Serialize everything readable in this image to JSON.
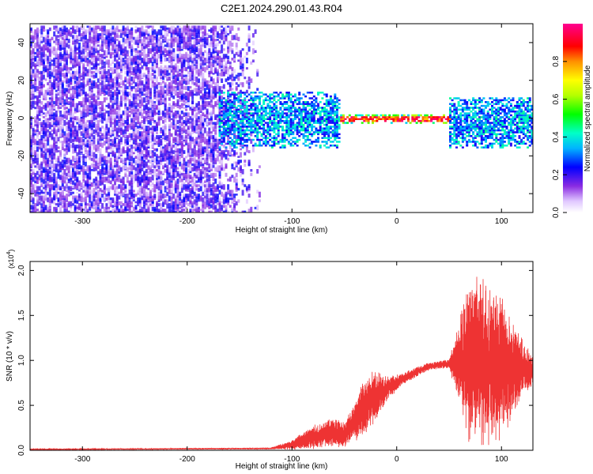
{
  "title": "C2E1.2024.290.01.43.R04",
  "chart_data": [
    {
      "type": "heatmap",
      "title": "C2E1.2024.290.01.43.R04",
      "xlabel": "Height of straight line (km)",
      "ylabel": "Frequency (Hz)",
      "xlim": [
        -350,
        130
      ],
      "ylim": [
        -50,
        50
      ],
      "xticks": [
        -300,
        -200,
        -100,
        0,
        100
      ],
      "xtick_labels": [
        "-300",
        "-200",
        "-100",
        "0",
        "100"
      ],
      "yticks": [
        -40,
        -20,
        0,
        20,
        40
      ],
      "ytick_labels": [
        "-40",
        "-20",
        "0",
        "20",
        "40"
      ],
      "colorbar": {
        "label": "Normalized spectral amplitude",
        "range": [
          0,
          1
        ],
        "ticks": [
          0.0,
          0.2,
          0.4,
          0.6,
          0.8
        ],
        "tick_labels": [
          "0.0",
          "0.2",
          "0.4",
          "0.6",
          "0.8"
        ],
        "colormap": "rainbow (white-violet-blue-cyan-green-yellow-red-magenta)"
      },
      "regions": [
        {
          "x": [
            -350,
            -130
          ],
          "freq_band": [
            -50,
            50
          ],
          "amplitude": [
            0.05,
            0.25
          ],
          "description_level": "noise"
        },
        {
          "x": [
            -170,
            -55
          ],
          "freq_band": [
            -15,
            15
          ],
          "amplitude": [
            0.2,
            0.45
          ]
        },
        {
          "x": [
            -55,
            50
          ],
          "freq_band": [
            -2,
            3
          ],
          "amplitude": [
            0.6,
            1.0
          ]
        },
        {
          "x": [
            50,
            130
          ],
          "freq_band": [
            -15,
            12
          ],
          "amplitude": [
            0.2,
            0.45
          ]
        }
      ]
    },
    {
      "type": "line",
      "xlabel": "Height of straight line (km)",
      "ylabel": "SNR (10 * v/v)",
      "y_multiplier_label": "(x10",
      "y_multiplier_exp": "4",
      "xlim": [
        -350,
        130
      ],
      "ylim": [
        0,
        2.1
      ],
      "xticks": [
        -300,
        -200,
        -100,
        0,
        100
      ],
      "xtick_labels": [
        "-300",
        "-200",
        "-100",
        "0",
        "100"
      ],
      "yticks": [
        0.0,
        0.5,
        1.0,
        1.5,
        2.0
      ],
      "ytick_labels": [
        "0.0",
        "0.5",
        "1.0",
        "1.5",
        "2.0"
      ],
      "series": [
        {
          "color": "#ee3333",
          "envelope_x": [
            -350,
            -120,
            -100,
            -80,
            -60,
            -50,
            -40,
            -30,
            -20,
            -10,
            0,
            10,
            20,
            30,
            40,
            50,
            60,
            65,
            70,
            80,
            90,
            100,
            110,
            120,
            130
          ],
          "envelope_mean": [
            0.01,
            0.02,
            0.06,
            0.15,
            0.2,
            0.17,
            0.32,
            0.5,
            0.6,
            0.68,
            0.75,
            0.82,
            0.88,
            0.93,
            0.95,
            0.96,
            0.97,
            1.0,
            1.0,
            0.98,
            0.96,
            0.94,
            0.92,
            0.9,
            0.88
          ],
          "envelope_spread": [
            0.005,
            0.01,
            0.05,
            0.12,
            0.15,
            0.12,
            0.2,
            0.3,
            0.25,
            0.12,
            0.08,
            0.06,
            0.05,
            0.04,
            0.04,
            0.05,
            0.4,
            0.7,
            0.9,
            0.85,
            0.75,
            0.7,
            0.5,
            0.3,
            0.15
          ]
        }
      ]
    }
  ]
}
